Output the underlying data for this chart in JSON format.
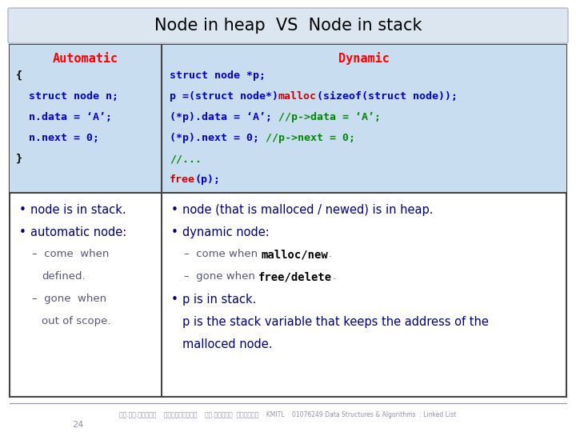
{
  "title": "Node in heap  VS  Node in stack",
  "title_bg": "#dce6f1",
  "title_color": "#000000",
  "title_fontsize": 15,
  "left_header": "Automatic",
  "right_header": "Dynamic",
  "header_color": "#ff0000",
  "code_bg": "#c8ddf0",
  "bullet_color": "#000080",
  "left_code": [
    [
      {
        "t": "{",
        "c": "#000000"
      }
    ],
    [
      {
        "t": "  struct node n;",
        "c": "#0000cc"
      }
    ],
    [
      {
        "t": "  n.data = ‘A’;",
        "c": "#0000cc"
      }
    ],
    [
      {
        "t": "  n.next = 0;",
        "c": "#0000cc"
      }
    ],
    [
      {
        "t": "}",
        "c": "#000000"
      }
    ]
  ],
  "right_code": [
    [
      {
        "t": "struct node *p;",
        "c": "#0000cc"
      }
    ],
    [
      {
        "t": "p =(struct node*)",
        "c": "#0000cc"
      },
      {
        "t": "malloc",
        "c": "#cc0000"
      },
      {
        "t": "(sizeof(struct node));",
        "c": "#0000cc"
      }
    ],
    [
      {
        "t": "(*p).data = ‘A’; ",
        "c": "#0000cc"
      },
      {
        "t": "//p->data = ‘A’;",
        "c": "#008800"
      }
    ],
    [
      {
        "t": "(*p).next = 0; ",
        "c": "#0000cc"
      },
      {
        "t": "//p->next = 0;",
        "c": "#008800"
      }
    ],
    [
      {
        "t": "//...",
        "c": "#008800"
      }
    ],
    [
      {
        "t": "free",
        "c": "#cc0000"
      },
      {
        "t": "(p);",
        "c": "#0000cc"
      }
    ]
  ],
  "footer_left": "รศ.ดร.บุญธร    เครือตราช    รศ.กฤตกน  ศลิบรณ    KMITL    01076249 Data Structures & Algorithms  : Linked List",
  "footer_page": "24",
  "footer_color": "#9090b0",
  "bg_color": "#ffffff",
  "border_color": "#444444"
}
